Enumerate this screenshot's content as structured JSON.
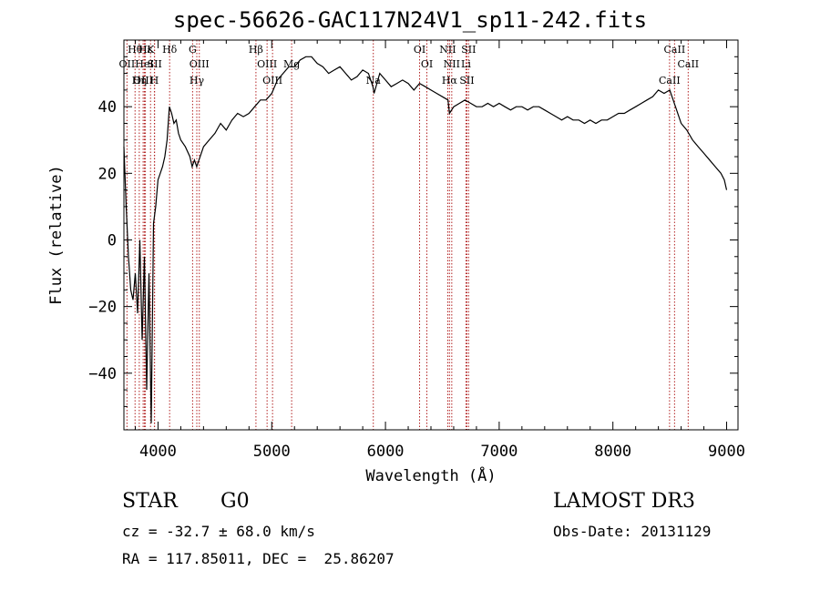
{
  "title": "spec-56626-GAC117N24V1_sp11-242.fits",
  "info": {
    "object_class": "STAR",
    "subclass": "G0",
    "survey": "LAMOST DR3",
    "cz": "cz = -32.7 ± 68.0 km/s",
    "obs_date": "Obs-Date: 20131129",
    "ra_dec": "RA = 117.85011, DEC =  25.86207"
  },
  "chart_data": {
    "type": "line",
    "title": "spec-56626-GAC117N24V1_sp11-242.fits",
    "xlabel": "Wavelength (Å)",
    "ylabel": "Flux (relative)",
    "xlim": [
      3700,
      9100
    ],
    "ylim": [
      -57,
      60
    ],
    "xticks": [
      4000,
      5000,
      6000,
      7000,
      8000,
      9000
    ],
    "yticks": [
      -40,
      -20,
      0,
      20,
      40
    ],
    "series": [
      {
        "color": "#000000",
        "x": [
          3700,
          3720,
          3740,
          3760,
          3780,
          3800,
          3820,
          3840,
          3860,
          3880,
          3900,
          3920,
          3940,
          3960,
          3980,
          4000,
          4020,
          4040,
          4060,
          4080,
          4100,
          4120,
          4140,
          4160,
          4180,
          4200,
          4240,
          4280,
          4300,
          4320,
          4340,
          4360,
          4400,
          4450,
          4500,
          4550,
          4600,
          4650,
          4700,
          4750,
          4800,
          4850,
          4900,
          4950,
          5000,
          5050,
          5100,
          5150,
          5200,
          5250,
          5300,
          5350,
          5400,
          5450,
          5500,
          5550,
          5600,
          5650,
          5700,
          5750,
          5800,
          5850,
          5890,
          5900,
          5950,
          6000,
          6050,
          6100,
          6150,
          6200,
          6250,
          6300,
          6350,
          6400,
          6450,
          6500,
          6550,
          6563,
          6600,
          6650,
          6700,
          6750,
          6800,
          6850,
          6900,
          6950,
          7000,
          7050,
          7100,
          7150,
          7200,
          7250,
          7300,
          7350,
          7400,
          7450,
          7500,
          7550,
          7600,
          7650,
          7700,
          7750,
          7800,
          7850,
          7900,
          7950,
          8000,
          8050,
          8100,
          8150,
          8200,
          8250,
          8300,
          8350,
          8400,
          8450,
          8500,
          8550,
          8600,
          8650,
          8700,
          8750,
          8800,
          8850,
          8900,
          8950,
          8980,
          9000
        ],
        "y": [
          28,
          10,
          -5,
          -15,
          -18,
          -10,
          -22,
          0,
          -30,
          -5,
          -45,
          -10,
          -55,
          5,
          10,
          18,
          20,
          22,
          25,
          30,
          40,
          38,
          35,
          36,
          32,
          30,
          28,
          25,
          22,
          24,
          22,
          24,
          28,
          30,
          32,
          35,
          33,
          36,
          38,
          37,
          38,
          40,
          42,
          42,
          44,
          48,
          50,
          52,
          52,
          54,
          55,
          55,
          53,
          52,
          50,
          51,
          52,
          50,
          48,
          49,
          51,
          50,
          46,
          44,
          50,
          48,
          46,
          47,
          48,
          47,
          45,
          47,
          46,
          45,
          44,
          43,
          42,
          38,
          40,
          41,
          42,
          41,
          40,
          40,
          41,
          40,
          41,
          40,
          39,
          40,
          40,
          39,
          40,
          40,
          39,
          38,
          37,
          36,
          37,
          36,
          36,
          35,
          36,
          35,
          36,
          36,
          37,
          38,
          38,
          39,
          40,
          41,
          42,
          43,
          45,
          44,
          45,
          40,
          35,
          33,
          30,
          28,
          26,
          24,
          22,
          20,
          18,
          15
        ]
      }
    ],
    "lines": [
      {
        "name": "Hθ",
        "x": 3798
      },
      {
        "name": "OII",
        "x": 3727
      },
      {
        "name": "OIII",
        "x": 3869
      },
      {
        "name": "Hε",
        "x": 3889
      },
      {
        "name": "HeI",
        "x": 3880
      },
      {
        "name": "Hη",
        "x": 3835
      },
      {
        "name": "K",
        "x": 3934
      },
      {
        "name": "SII",
        "x": 3970
      },
      {
        "name": "H",
        "x": 3968
      },
      {
        "name": "Hδ",
        "x": 4102
      },
      {
        "name": "OIII",
        "x": 4363
      },
      {
        "name": "Hγ",
        "x": 4341
      },
      {
        "name": "G",
        "x": 4304
      },
      {
        "name": "OIII",
        "x": 4959
      },
      {
        "name": "OIII",
        "x": 5007
      },
      {
        "name": "Hβ",
        "x": 4861
      },
      {
        "name": "Mg",
        "x": 5175
      },
      {
        "name": "Na",
        "x": 5893
      },
      {
        "name": "OI",
        "x": 6300
      },
      {
        "name": "OI",
        "x": 6364
      },
      {
        "name": "Hα",
        "x": 6563
      },
      {
        "name": "NII",
        "x": 6548
      },
      {
        "name": "NII",
        "x": 6583
      },
      {
        "name": "SII",
        "x": 6716
      },
      {
        "name": "SII",
        "x": 6731
      },
      {
        "name": "Li",
        "x": 6708
      },
      {
        "name": "CaII",
        "x": 8498
      },
      {
        "name": "CaII",
        "x": 8542
      },
      {
        "name": "CaII",
        "x": 8662
      }
    ]
  }
}
